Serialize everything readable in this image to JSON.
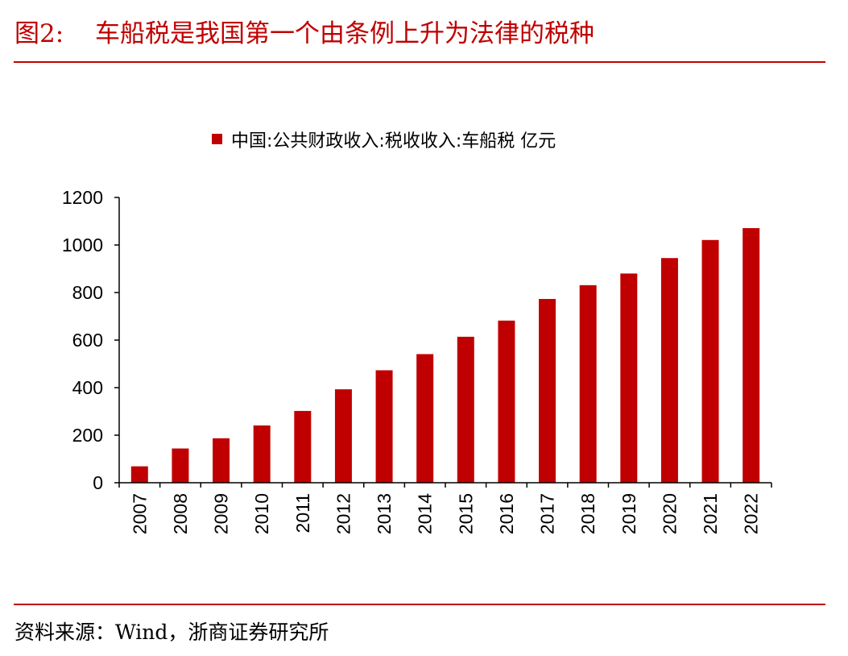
{
  "figure": {
    "number": "图2:",
    "title": "车船税是我国第一个由条例上升为法律的税种",
    "source": "资料来源：Wind，浙商证券研究所"
  },
  "colors": {
    "accent": "#c00000",
    "bar": "#c00000",
    "axis": "#000000",
    "text": "#000000"
  },
  "chart_data": {
    "type": "bar",
    "title": "",
    "xlabel": "",
    "ylabel": "",
    "categories": [
      "2007",
      "2008",
      "2009",
      "2010",
      "2011",
      "2012",
      "2013",
      "2014",
      "2015",
      "2016",
      "2017",
      "2018",
      "2019",
      "2020",
      "2021",
      "2022"
    ],
    "series": [
      {
        "name": "中国:公共财政收入:税收收入:车船税 亿元",
        "values": [
          69,
          144,
          187,
          241,
          302,
          393,
          473,
          541,
          614,
          682,
          773,
          831,
          880,
          945,
          1021,
          1071
        ]
      }
    ],
    "ylim": [
      0,
      1200
    ],
    "yticks": [
      "0",
      "200",
      "400",
      "600",
      "800",
      "1000",
      "1200"
    ],
    "grid": false,
    "legend": "top-center"
  }
}
